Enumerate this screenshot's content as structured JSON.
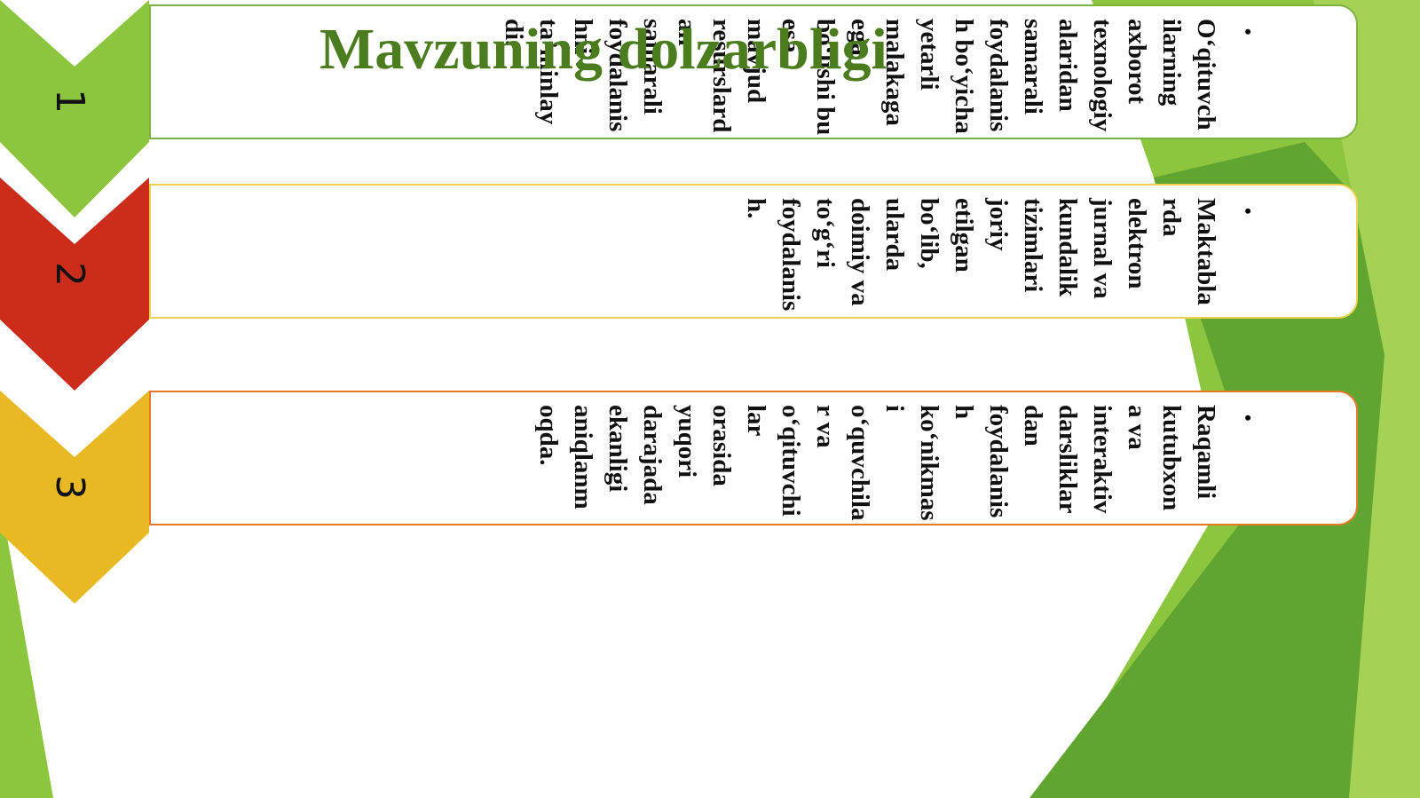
{
  "title": "Mavzuning dolzarbligi",
  "items": [
    {
      "number": "1",
      "text": "O‘qituvchilarning axborot texnologiyalaridan samarali foydalanish bo‘yicha yetarli malakaga ega bo‘lishi bu esa mavjud resurslardan samarali foydalanishni ta’minlaydi."
    },
    {
      "number": "2",
      "text": "Maktablarda elektron jurnal va kundalik tizimlari joriy etilgan bo‘lib, ularda doimiy va to‘g‘ri foydalanish."
    },
    {
      "number": "3",
      "text": "Raqamli kutubxona va interaktiv darsliklardan foydalanish ko‘nikmasi o‘quvchilar va o‘qituvchilar orasida yuqori darajada ekanligi aniqlanmoqda."
    }
  ]
}
